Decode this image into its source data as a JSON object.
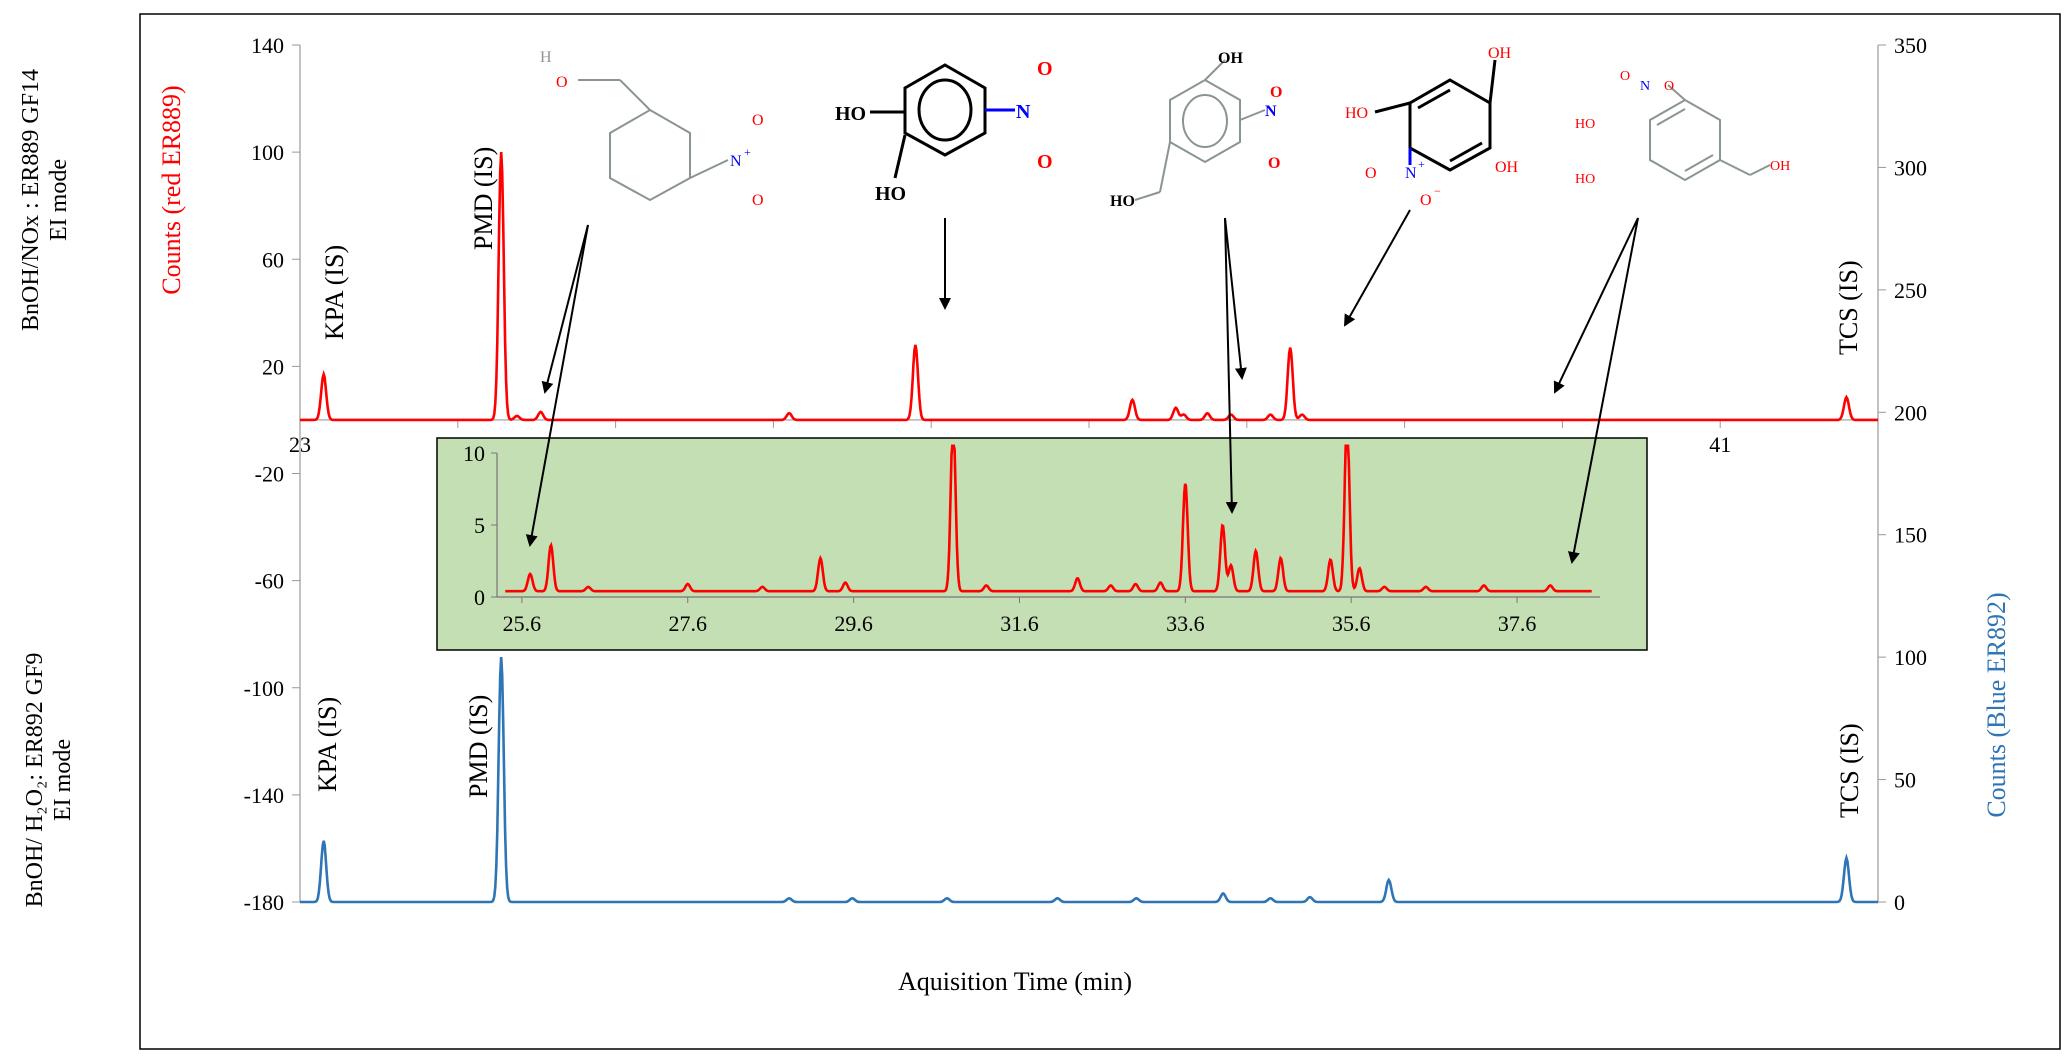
{
  "chart_data": {
    "type": "line",
    "xlabel": "Aquisition Time (min)",
    "x_range": [
      23,
      43
    ],
    "x_ticks": [
      23,
      41
    ],
    "left_axis": {
      "label": "Counts (red ER889)",
      "label_color": "#ff0000",
      "ylim": [
        -180,
        140
      ],
      "ticks": [
        140,
        100,
        60,
        20,
        -20,
        -60,
        -100,
        -140,
        -180
      ]
    },
    "right_axis": {
      "label": "Counts (Blue ER892)",
      "label_color": "#2e75b6",
      "ylim": [
        0,
        350
      ],
      "ticks": [
        350,
        300,
        250,
        200,
        150,
        100,
        50,
        0
      ]
    },
    "row_labels": [
      {
        "lines": [
          "BnOH/NOx : ER889 GF14",
          "EI mode"
        ]
      },
      {
        "lines": [
          "BnOH/ H₂O₂: ER892 GF9",
          "EI mode"
        ]
      }
    ],
    "series": [
      {
        "name": "red ER889",
        "color": "#ff0000",
        "axis": "left",
        "baseline": 0,
        "peaks": [
          {
            "x": 23.3,
            "h": 17
          },
          {
            "x": 25.55,
            "h": 100
          },
          {
            "x": 25.75,
            "h": 1.5
          },
          {
            "x": 26.05,
            "h": 3
          },
          {
            "x": 29.2,
            "h": 2.5
          },
          {
            "x": 30.8,
            "h": 28
          },
          {
            "x": 33.55,
            "h": 7.5
          },
          {
            "x": 34.1,
            "h": 4.5
          },
          {
            "x": 34.2,
            "h": 2
          },
          {
            "x": 34.5,
            "h": 2.5
          },
          {
            "x": 34.8,
            "h": 2
          },
          {
            "x": 35.3,
            "h": 2
          },
          {
            "x": 35.55,
            "h": 27
          },
          {
            "x": 35.7,
            "h": 2
          },
          {
            "x": 42.6,
            "h": 8.5
          }
        ]
      },
      {
        "name": "Blue ER892",
        "color": "#2e75b6",
        "axis": "right",
        "baseline": 0,
        "peaks": [
          {
            "x": 23.3,
            "h": 25
          },
          {
            "x": 25.55,
            "h": 100
          },
          {
            "x": 29.2,
            "h": 1.5
          },
          {
            "x": 30.0,
            "h": 1.5
          },
          {
            "x": 31.2,
            "h": 1.5
          },
          {
            "x": 32.6,
            "h": 1.5
          },
          {
            "x": 33.6,
            "h": 1.5
          },
          {
            "x": 34.7,
            "h": 3.5
          },
          {
            "x": 35.3,
            "h": 1.5
          },
          {
            "x": 35.8,
            "h": 2
          },
          {
            "x": 36.8,
            "h": 9
          },
          {
            "x": 42.6,
            "h": 18
          }
        ]
      }
    ],
    "inset": {
      "background": "#c5dfb4",
      "x_range": [
        25.3,
        38.6
      ],
      "ylim": [
        0,
        10
      ],
      "y_ticks": [
        10,
        5,
        0
      ],
      "x_ticks": [
        25.6,
        27.6,
        29.6,
        31.6,
        33.6,
        35.6,
        37.6
      ],
      "baseline": 0.4,
      "peaks": [
        {
          "x": 25.7,
          "h": 1.2
        },
        {
          "x": 25.95,
          "h": 3.2
        },
        {
          "x": 26.4,
          "h": 0.3
        },
        {
          "x": 27.6,
          "h": 0.5
        },
        {
          "x": 28.5,
          "h": 0.3
        },
        {
          "x": 29.2,
          "h": 2.3
        },
        {
          "x": 29.5,
          "h": 0.6
        },
        {
          "x": 30.8,
          "h": 12
        },
        {
          "x": 31.2,
          "h": 0.4
        },
        {
          "x": 32.3,
          "h": 0.9
        },
        {
          "x": 32.7,
          "h": 0.4
        },
        {
          "x": 33.0,
          "h": 0.5
        },
        {
          "x": 33.3,
          "h": 0.6
        },
        {
          "x": 33.6,
          "h": 7.5
        },
        {
          "x": 34.05,
          "h": 4.6
        },
        {
          "x": 34.15,
          "h": 1.8
        },
        {
          "x": 34.45,
          "h": 2.8
        },
        {
          "x": 34.75,
          "h": 2.3
        },
        {
          "x": 35.35,
          "h": 2.2
        },
        {
          "x": 35.55,
          "h": 12
        },
        {
          "x": 35.7,
          "h": 1.6
        },
        {
          "x": 36.0,
          "h": 0.3
        },
        {
          "x": 36.5,
          "h": 0.3
        },
        {
          "x": 37.2,
          "h": 0.4
        },
        {
          "x": 38.0,
          "h": 0.4
        }
      ]
    },
    "annotations": [
      {
        "text": "KPA (IS)"
      },
      {
        "text": "PMD (IS)"
      },
      {
        "text": "TCS (IS)"
      },
      {
        "text": "KPA (IS)"
      },
      {
        "text": "PMD (IS)"
      },
      {
        "text": "TCS (IS)"
      }
    ],
    "structures": [
      {
        "name": "3-nitrobenzyl alcohol",
        "labels": [
          "H",
          "O",
          "N",
          "+",
          "O",
          "O"
        ]
      },
      {
        "name": "4-nitrocatechol",
        "labels": [
          "HO",
          "HO",
          "N",
          "O",
          "O"
        ]
      },
      {
        "name": "hydroxy-nitrobenzyl alcohol",
        "labels": [
          "OH",
          "N",
          "O",
          "O",
          "HO"
        ]
      },
      {
        "name": "nitrobenzenetriol",
        "labels": [
          "OH",
          "HO",
          "OH",
          "O",
          "N",
          "+",
          "O",
          "−"
        ]
      },
      {
        "name": "dihydroxy-nitrobenzyl alcohol",
        "labels": [
          "N",
          "O",
          "O",
          "HO",
          "HO",
          "OH"
        ]
      }
    ]
  }
}
